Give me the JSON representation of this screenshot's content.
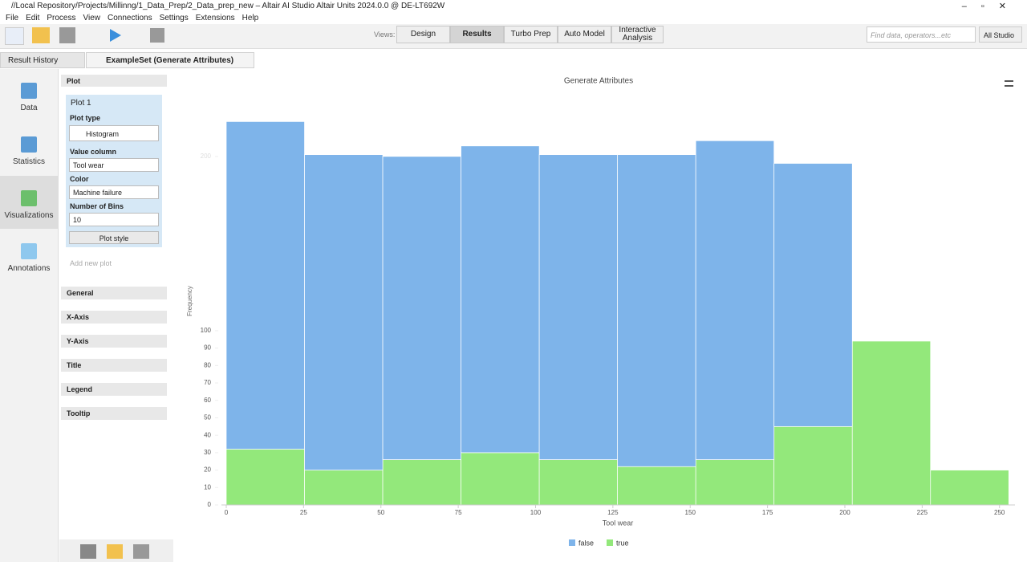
{
  "window": {
    "title": "//Local Repository/Projects/Millinng/1_Data_Prep/2_Data_prep_new – Altair AI Studio Altair Units 2024.0.0 @ DE-LT692W"
  },
  "menu": [
    "File",
    "Edit",
    "Process",
    "View",
    "Connections",
    "Settings",
    "Extensions",
    "Help"
  ],
  "toolbar": {
    "views_label": "Views:",
    "views": [
      "Design",
      "Results",
      "Turbo Prep",
      "Auto Model",
      "Interactive Analysis"
    ],
    "active_view": "Results",
    "search_placeholder": "Find data, operators...etc",
    "scope": "All Studio"
  },
  "tabs": [
    "Result History",
    "ExampleSet (Generate Attributes)"
  ],
  "sidebar": [
    "Data",
    "Statistics",
    "Visualizations",
    "Annotations"
  ],
  "plot_panel": {
    "header": "Plot",
    "plot_name": "Plot 1",
    "fields": [
      {
        "label": "Plot type",
        "value": "Histogram"
      },
      {
        "label": "Value column",
        "value": "Tool wear"
      },
      {
        "label": "Color",
        "value": "Machine failure"
      },
      {
        "label": "Number of Bins",
        "value": "10"
      }
    ],
    "plot_style": "Plot style",
    "add_plot": "Add new plot",
    "sections": [
      "General",
      "X-Axis",
      "Y-Axis",
      "Title",
      "Legend",
      "Tooltip"
    ]
  },
  "chart_data": {
    "type": "histogram",
    "title": "Generate Attributes",
    "xlabel": "Tool wear",
    "ylabel": "Frequency",
    "bins": [
      0,
      25.3,
      50.6,
      75.9,
      101.2,
      126.5,
      151.8,
      177.1,
      202.4,
      227.7,
      253
    ],
    "series": [
      {
        "name": "true",
        "color": "#93e87b",
        "values": [
          32,
          20,
          26,
          30,
          26,
          22,
          26,
          45,
          94,
          20
        ]
      },
      {
        "name": "false",
        "color": "#7eb4ea",
        "values": [
          188,
          181,
          174,
          176,
          175,
          179,
          183,
          151,
          0,
          0
        ]
      }
    ],
    "stacked": true,
    "xlim": [
      0,
      255
    ],
    "xticks": [
      0,
      25,
      50,
      75,
      100,
      125,
      150,
      175,
      200,
      225,
      250
    ],
    "ylim": [
      0,
      240
    ],
    "yticks": [
      0,
      10,
      20,
      30,
      40,
      50,
      60,
      70,
      80,
      90,
      100,
      200
    ],
    "legend": [
      "false",
      "true"
    ]
  }
}
